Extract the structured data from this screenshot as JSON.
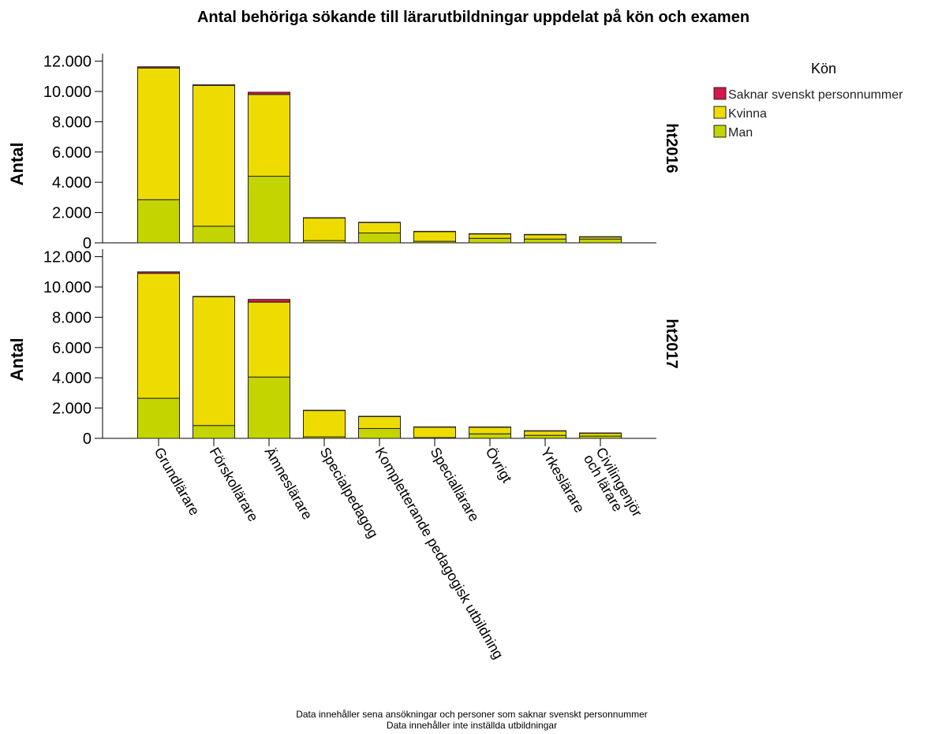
{
  "chart_data": {
    "type": "bar",
    "stacked": true,
    "title": "Antal behöriga sökande till lärarutbildningar uppdelat på kön och examen",
    "ylabel": "Antal",
    "ylim": [
      0,
      12500
    ],
    "yticks": [
      0,
      2000,
      4000,
      6000,
      8000,
      10000,
      12000
    ],
    "ytick_labels": [
      "0",
      "2.000",
      "4.000",
      "6.000",
      "8.000",
      "10.000",
      "12.000"
    ],
    "categories": [
      "Grundlärare",
      "Förskollärare",
      "Ämneslärare",
      "Specialpedagog",
      "Kompletterande pedagogisk utbildning",
      "Speciallärare",
      "Övrigt",
      "Yrkeslärare",
      "Civilingenjör och lärare"
    ],
    "legend_title": "Kön",
    "legend_position": "top-right",
    "panels": [
      {
        "label": "ht2016",
        "series": [
          {
            "name": "Man",
            "color": "#c3d400",
            "values": [
              2850,
              1100,
              4400,
              150,
              650,
              100,
              300,
              250,
              250
            ]
          },
          {
            "name": "Kvinna",
            "color": "#eedc00",
            "values": [
              8700,
              9300,
              5400,
              1500,
              700,
              650,
              300,
              300,
              150
            ]
          },
          {
            "name": "Saknar svenskt personnummer",
            "color": "#d5174a",
            "values": [
              80,
              40,
              150,
              10,
              10,
              10,
              5,
              5,
              5
            ]
          }
        ]
      },
      {
        "label": "ht2017",
        "series": [
          {
            "name": "Man",
            "color": "#c3d400",
            "values": [
              2650,
              850,
              4050,
              100,
              650,
              50,
              300,
              200,
              150
            ]
          },
          {
            "name": "Kvinna",
            "color": "#eedc00",
            "values": [
              8250,
              8500,
              4950,
              1750,
              800,
              700,
              450,
              300,
              200
            ]
          },
          {
            "name": "Saknar svenskt personnummer",
            "color": "#d5174a",
            "values": [
              100,
              30,
              180,
              10,
              10,
              10,
              5,
              5,
              5
            ]
          }
        ]
      }
    ],
    "legend_order": [
      "Saknar svenskt personnummer",
      "Kvinna",
      "Man"
    ]
  },
  "footnotes": [
    "Data innehåller sena ansökningar och personer som saknar svenskt personnummer",
    "Data innehåller inte inställda utbildningar"
  ]
}
